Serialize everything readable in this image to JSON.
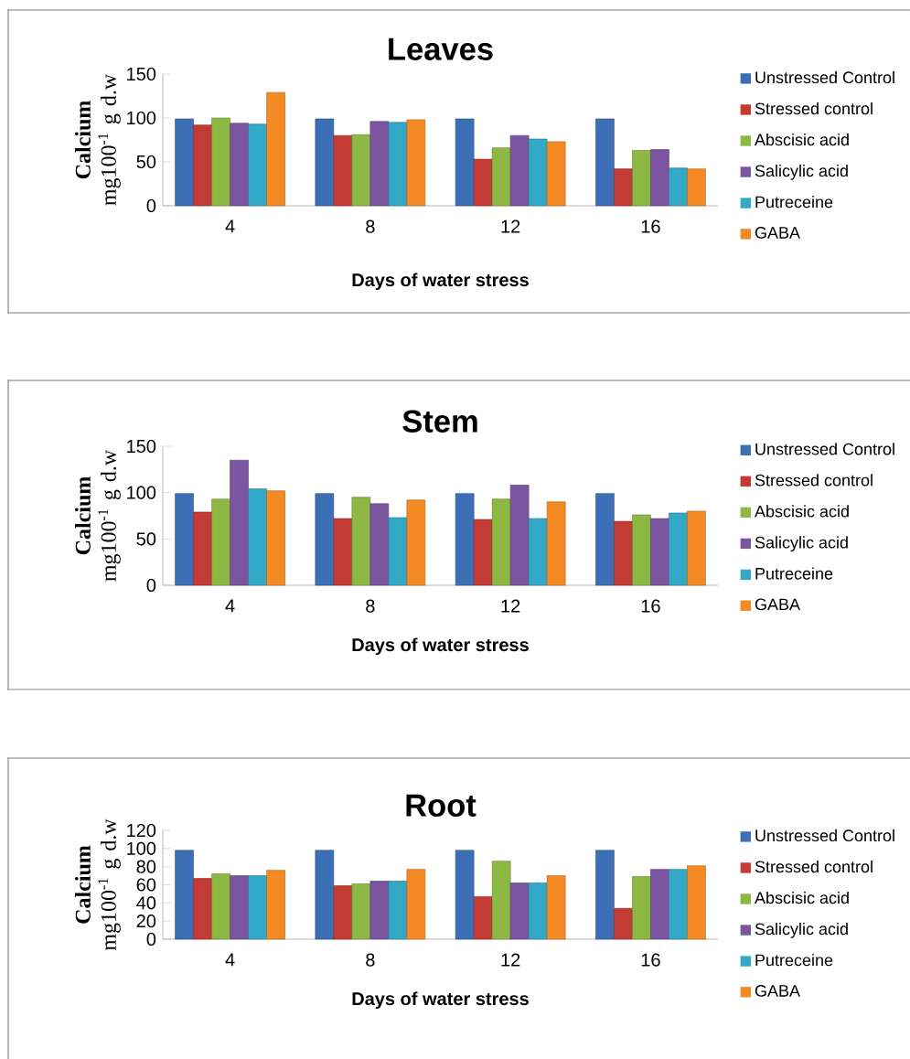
{
  "chart_data": [
    {
      "type": "bar",
      "title": "Leaves",
      "xlabel": "Days of water stress",
      "ylabel": "**Calcium** mg100$^{-1}$ g d.w",
      "categories": [
        "4",
        "8",
        "12",
        "16"
      ],
      "ylim": [
        0,
        150
      ],
      "yticks": [
        0,
        50,
        100,
        150
      ],
      "legend": "right",
      "series": [
        {
          "name": "Unstressed Control",
          "color": "#3d6fb6",
          "values": [
            99,
            99,
            99,
            99
          ]
        },
        {
          "name": "Stressed control",
          "color": "#c43a35",
          "values": [
            92,
            80,
            53,
            42
          ]
        },
        {
          "name": "Abscisic acid",
          "color": "#8db843",
          "values": [
            100,
            81,
            66,
            63
          ]
        },
        {
          "name": "Salicylic acid",
          "color": "#7b559f",
          "values": [
            94,
            96,
            80,
            64
          ]
        },
        {
          "name": "Putreceine",
          "color": "#33a9c7",
          "values": [
            93,
            95,
            76,
            43
          ]
        },
        {
          "name": "GABA",
          "color": "#f48a24",
          "values": [
            129,
            98,
            73,
            42
          ]
        }
      ]
    },
    {
      "type": "bar",
      "title": "Stem",
      "xlabel": "Days of water stress",
      "ylabel": "**Calcium** mg100$^{-1}$ g d.w",
      "categories": [
        "4",
        "8",
        "12",
        "16"
      ],
      "ylim": [
        0,
        150
      ],
      "yticks": [
        0,
        50,
        100,
        150
      ],
      "legend": "right",
      "series": [
        {
          "name": "Unstressed Control",
          "color": "#3d6fb6",
          "values": [
            99,
            99,
            99,
            99
          ]
        },
        {
          "name": "Stressed control",
          "color": "#c43a35",
          "values": [
            79,
            72,
            71,
            69
          ]
        },
        {
          "name": "Abscisic acid",
          "color": "#8db843",
          "values": [
            93,
            95,
            93,
            76
          ]
        },
        {
          "name": "Salicylic acid",
          "color": "#7b559f",
          "values": [
            135,
            88,
            108,
            72
          ]
        },
        {
          "name": "Putreceine",
          "color": "#33a9c7",
          "values": [
            104,
            73,
            72,
            78
          ]
        },
        {
          "name": "GABA",
          "color": "#f48a24",
          "values": [
            102,
            92,
            90,
            80
          ]
        }
      ]
    },
    {
      "type": "bar",
      "title": "Root",
      "xlabel": "Days of water stress",
      "ylabel": "**Calcium** mg100$^{-1}$ g d.w",
      "categories": [
        "4",
        "8",
        "12",
        "16"
      ],
      "ylim": [
        0,
        120
      ],
      "yticks": [
        0,
        20,
        40,
        60,
        80,
        100,
        120
      ],
      "legend": "right",
      "series": [
        {
          "name": "Unstressed Control",
          "color": "#3d6fb6",
          "values": [
            98,
            98,
            98,
            98
          ]
        },
        {
          "name": "Stressed control",
          "color": "#c43a35",
          "values": [
            67,
            59,
            47,
            34
          ]
        },
        {
          "name": "Abscisic acid",
          "color": "#8db843",
          "values": [
            72,
            61,
            86,
            69
          ]
        },
        {
          "name": "Salicylic acid",
          "color": "#7b559f",
          "values": [
            70,
            64,
            62,
            77
          ]
        },
        {
          "name": "Putreceine",
          "color": "#33a9c7",
          "values": [
            70,
            64,
            62,
            77
          ]
        },
        {
          "name": "GABA",
          "color": "#f48a24",
          "values": [
            76,
            77,
            70,
            81
          ]
        }
      ]
    }
  ]
}
